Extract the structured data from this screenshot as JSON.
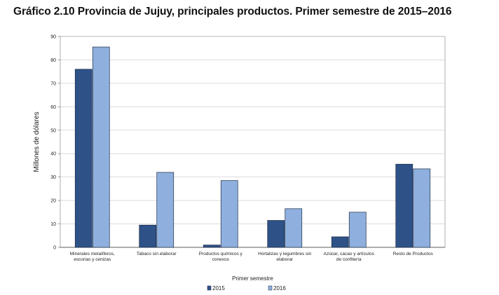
{
  "chart_data": {
    "type": "bar",
    "title": "Gráfico 2.10 Provincia de Jujuy, principales productos. Primer semestre de 2015–2016",
    "xlabel": "Primer semestre",
    "ylabel": "Millones de dólares",
    "ylim": [
      0,
      90
    ],
    "yticks": [
      0,
      10,
      20,
      30,
      40,
      50,
      60,
      70,
      80,
      90
    ],
    "grid": true,
    "legend_position": "bottom",
    "categories": [
      [
        "Minerales metalíferos,",
        "escorias y cenizas"
      ],
      [
        "Tabaco sin elaborar"
      ],
      [
        "Productos químicos y",
        "conexos"
      ],
      [
        "Hortalizas y legumbres sin",
        "elaborar"
      ],
      [
        "Azúcar, cacao y artículos",
        "de confitería"
      ],
      [
        "Resto de Productos"
      ]
    ],
    "series": [
      {
        "name": "2015",
        "color": "#2e5288",
        "values": [
          76,
          9.5,
          1,
          11.5,
          4.5,
          35.5
        ]
      },
      {
        "name": "2016",
        "color": "#8fb0de",
        "values": [
          85.5,
          32,
          28.5,
          16.5,
          15,
          33.5
        ]
      }
    ]
  }
}
